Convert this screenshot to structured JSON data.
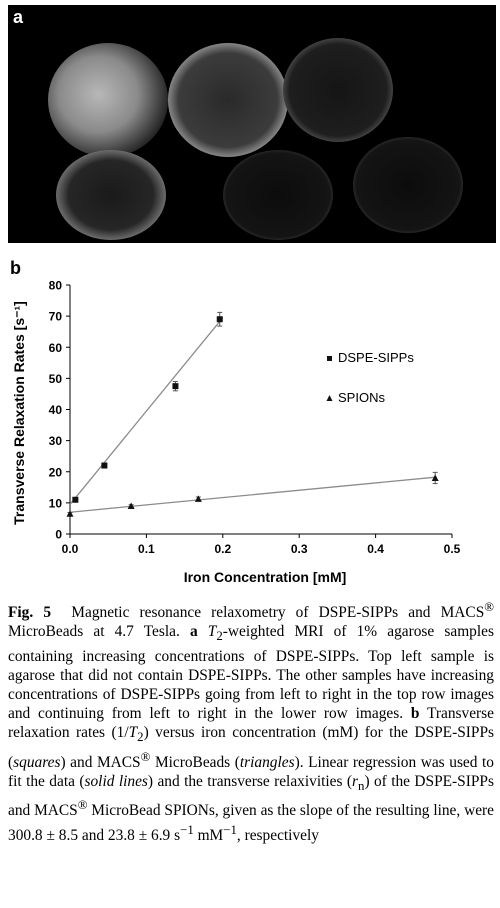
{
  "panel_a": {
    "label": "a"
  },
  "chart_data": {
    "type": "scatter",
    "panel_label": "b",
    "title": "",
    "xlabel": "Iron Concentration [mM]",
    "ylabel": "Transverse Relaxation Rates [s⁻¹]",
    "xlim": [
      0,
      0.5
    ],
    "ylim": [
      0,
      80
    ],
    "x_ticks": [
      "0.0",
      "0.1",
      "0.2",
      "0.3",
      "0.4",
      "0.5"
    ],
    "y_ticks": [
      "0",
      "10",
      "20",
      "30",
      "40",
      "50",
      "60",
      "70",
      "80"
    ],
    "grid": false,
    "legend_position": "right",
    "series": [
      {
        "name": "DSPE-SIPPs",
        "marker": "square",
        "x": [
          0.007,
          0.045,
          0.138,
          0.196
        ],
        "y": [
          11,
          22,
          47.5,
          69
        ],
        "err": [
          0.6,
          0.6,
          1.5,
          2.2
        ],
        "fit": {
          "x": [
            0,
            0.2
          ],
          "y": [
            9.5,
            69.5
          ]
        }
      },
      {
        "name": "SPIONs",
        "marker": "triangle",
        "x": [
          0.0,
          0.08,
          0.168,
          0.478
        ],
        "y": [
          6.5,
          9,
          11.3,
          18
        ],
        "err": [
          0.4,
          0.4,
          0.6,
          1.8
        ],
        "fit": {
          "x": [
            0,
            0.48
          ],
          "y": [
            7,
            18.3
          ]
        }
      }
    ]
  },
  "caption": {
    "fig_label": "Fig. 5",
    "parts": [
      "Magnetic resonance relaxometry of DSPE-SIPPs and MACS",
      "®",
      " MicroBeads at 4.7 Tesla. ",
      "a",
      " ",
      "T",
      "2",
      "-weighted MRI of 1% agarose samples containing increasing concentrations of DSPE-SIPPs. Top left sample is agarose that did not contain DSPE-SIPPs. The other samples have increasing concentrations of DSPE-SIPPs going from left to right in the top row images and continuing from left to right in the lower row images. ",
      "b",
      " Transverse relaxation rates (1/",
      "T",
      "2",
      ") versus iron concentration (mM) for the DSPE-SIPPs (",
      "squares",
      ") and MACS",
      "®",
      " MicroBeads (",
      "triangles",
      "). Linear regression was used to fit the data (",
      "solid lines",
      ") and the transverse relaxivities (",
      "r",
      "n",
      ") of the DSPE-SIPPs and MACS",
      "®",
      " MicroBead SPIONs, given as the slope of the resulting line, were 300.8 ± 8.5 and 23.8 ± 6.9 s",
      "−1",
      " mM",
      "−1",
      ", respectively"
    ]
  }
}
